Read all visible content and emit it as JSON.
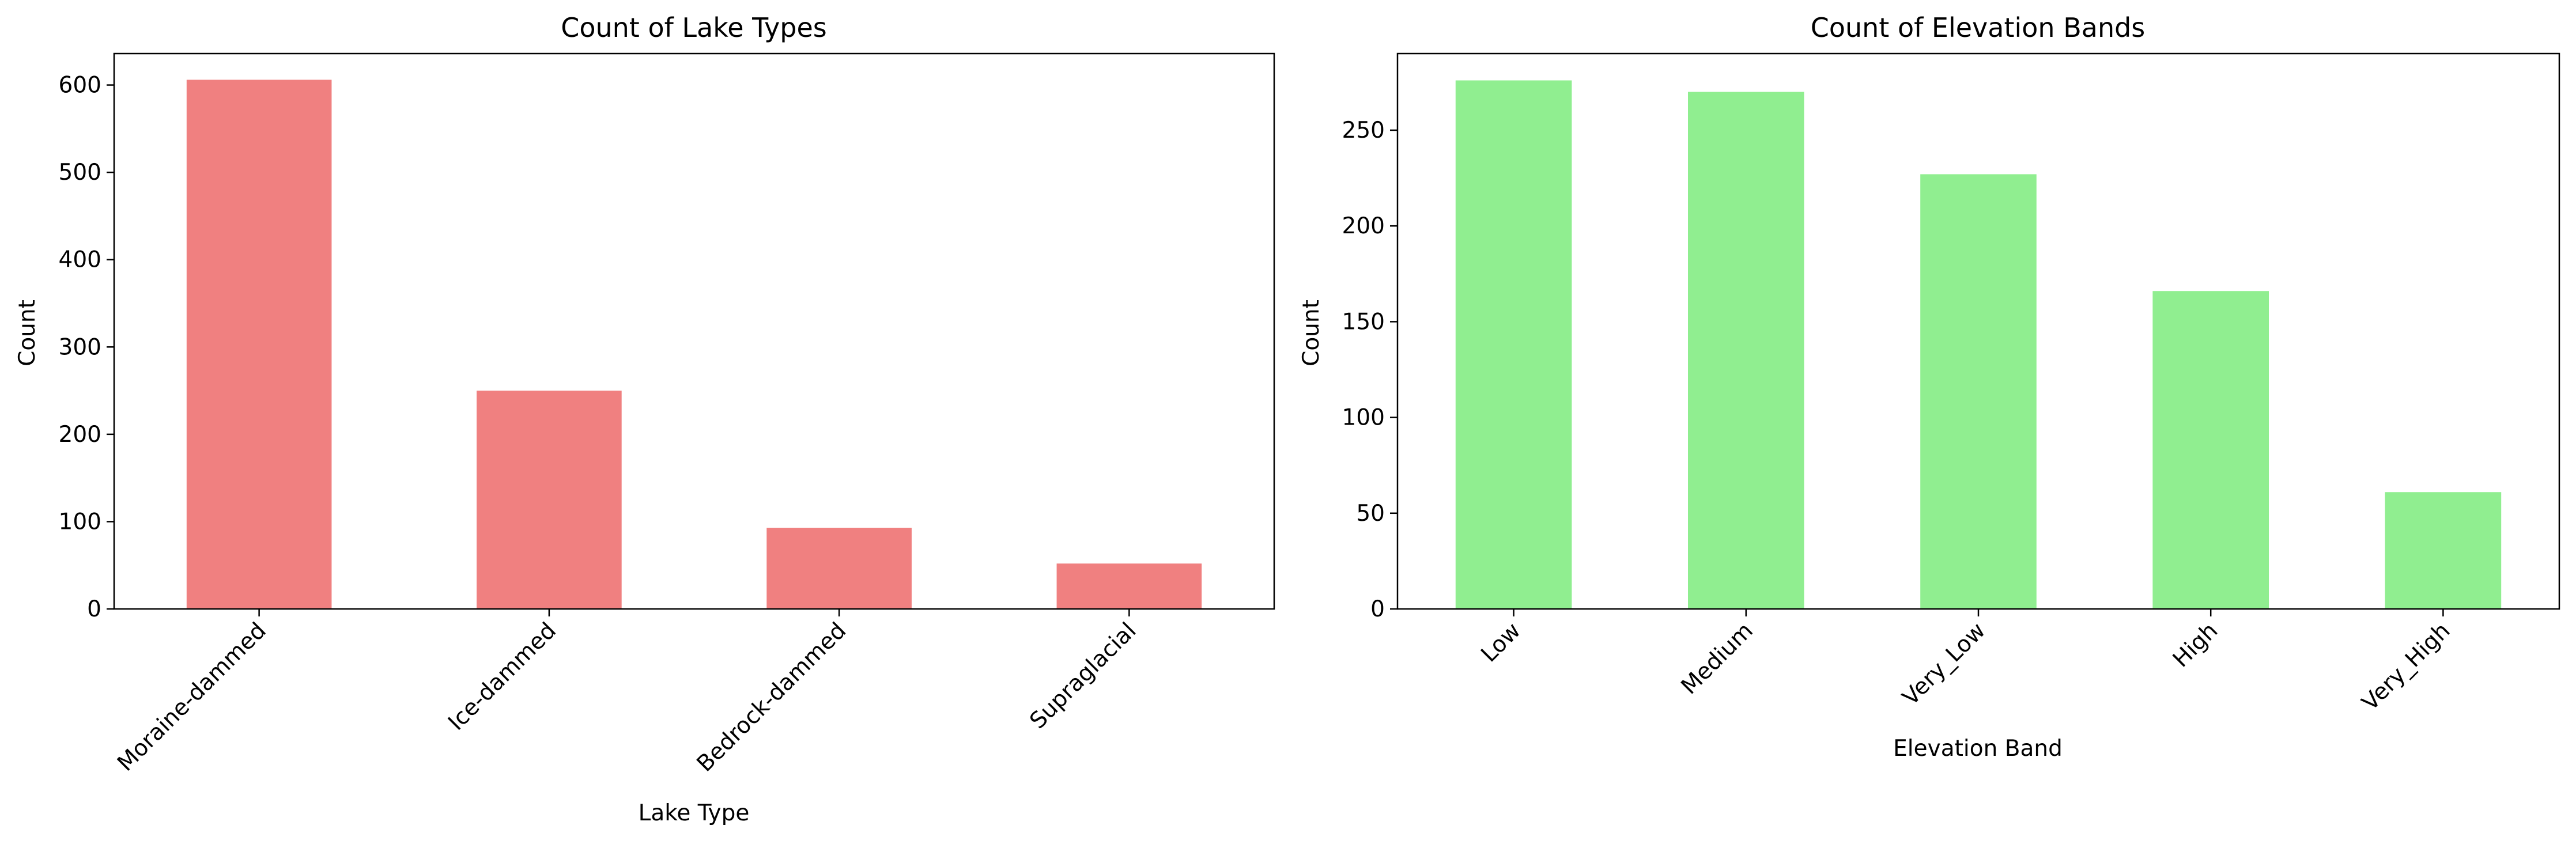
{
  "chart_data": [
    {
      "type": "bar",
      "title": "Count of Lake Types",
      "xlabel": "Lake Type",
      "ylabel": "Count",
      "categories": [
        "Moraine-dammed",
        "Ice-dammed",
        "Bedrock-dammed",
        "Supraglacial"
      ],
      "values": [
        606,
        250,
        93,
        52
      ],
      "ylim": [
        0,
        636
      ],
      "yticks": [
        0,
        100,
        200,
        300,
        400,
        500,
        600
      ],
      "xtick_rotation": 45,
      "color": "#f08080",
      "grid": false,
      "legend": "none"
    },
    {
      "type": "bar",
      "title": "Count of Elevation Bands",
      "xlabel": "Elevation Band",
      "ylabel": "Count",
      "categories": [
        "Low",
        "Medium",
        "Very_Low",
        "High",
        "Very_High"
      ],
      "values": [
        276,
        270,
        227,
        166,
        61
      ],
      "ylim": [
        0,
        290
      ],
      "yticks": [
        0,
        50,
        100,
        150,
        200,
        250
      ],
      "xtick_rotation": 45,
      "color": "#90ee90",
      "grid": false,
      "legend": "none"
    }
  ]
}
